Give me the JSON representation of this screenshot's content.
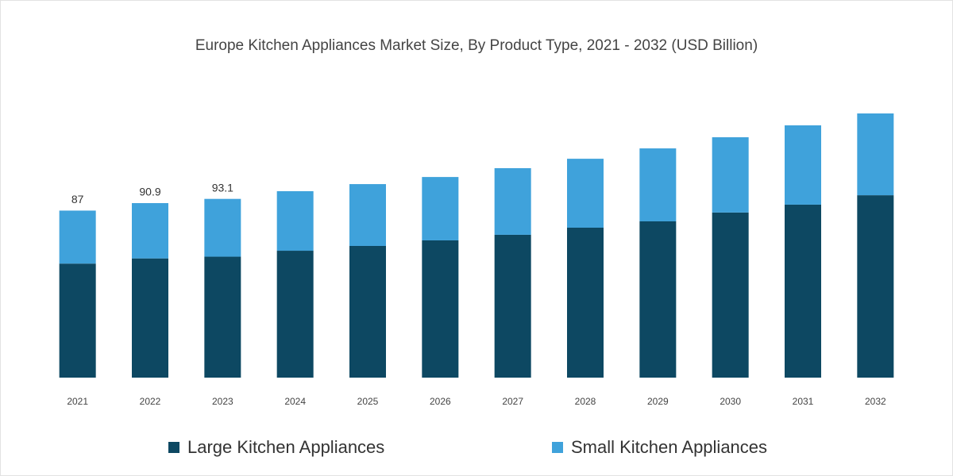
{
  "chart_data": {
    "type": "stacked_bar",
    "title": "Europe Kitchen Appliances Market Size, By Product Type, 2021 - 2032 (USD Billion)",
    "categories": [
      "2021",
      "2022",
      "2023",
      "2024",
      "2025",
      "2026",
      "2027",
      "2028",
      "2029",
      "2030",
      "2031",
      "2032"
    ],
    "series": [
      {
        "name": "Large Kitchen Appliances",
        "color": "#0d4862",
        "values": [
          59.4,
          62.1,
          63.0,
          66.1,
          68.6,
          71.5,
          74.4,
          78.1,
          81.4,
          86.0,
          90.1,
          95.0
        ]
      },
      {
        "name": "Small Kitchen Appliances",
        "color": "#3fa2db",
        "values": [
          27.6,
          28.8,
          30.1,
          31.0,
          32.2,
          33.0,
          34.7,
          35.9,
          38.0,
          39.2,
          41.3,
          42.6
        ]
      }
    ],
    "total_labels": [
      "87",
      "90.9",
      "93.1"
    ],
    "legend": "bottom"
  }
}
